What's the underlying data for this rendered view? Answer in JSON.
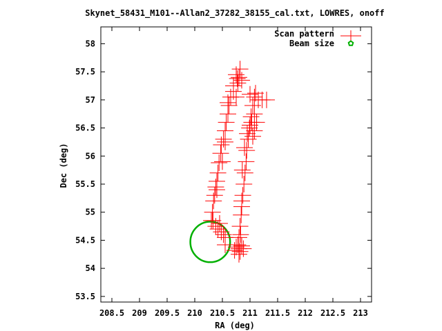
{
  "chart_data": {
    "type": "scatter",
    "title": "Skynet_58431_M101--Allan2_37282_38155_cal.txt, LOWRES, onoff",
    "xlabel": "RA (deg)",
    "ylabel": "Dec (deg)",
    "xlim": [
      208.3,
      213.2
    ],
    "ylim": [
      53.4,
      58.3
    ],
    "x_ticks": [
      "208.5",
      "209",
      "209.5",
      "210",
      "210.5",
      "211",
      "211.5",
      "212",
      "212.5",
      "213"
    ],
    "y_ticks": [
      "53.5",
      "54",
      "54.5",
      "55",
      "55.5",
      "56",
      "56.5",
      "57",
      "57.5",
      "58"
    ],
    "legend_position": "top-right",
    "colors": {
      "scan": "#ff0000",
      "beam": "#00b000"
    },
    "series": [
      {
        "name": "Scan pattern",
        "marker": "plus",
        "points": [
          [
            210.8,
            54.35
          ],
          [
            210.78,
            54.42
          ],
          [
            210.82,
            54.3
          ],
          [
            210.75,
            54.38
          ],
          [
            210.85,
            54.4
          ],
          [
            210.8,
            54.25
          ],
          [
            210.88,
            54.35
          ],
          [
            210.72,
            54.32
          ],
          [
            210.8,
            54.55
          ],
          [
            210.82,
            54.75
          ],
          [
            210.84,
            54.95
          ],
          [
            210.85,
            55.1
          ],
          [
            210.87,
            55.3
          ],
          [
            210.89,
            55.5
          ],
          [
            210.91,
            55.7
          ],
          [
            210.93,
            55.9
          ],
          [
            210.94,
            56.1
          ],
          [
            210.97,
            56.3
          ],
          [
            210.99,
            56.5
          ],
          [
            211.02,
            56.7
          ],
          [
            211.05,
            56.9
          ],
          [
            211.08,
            57.05
          ],
          [
            211.15,
            57.0
          ],
          [
            211.22,
            57.0
          ],
          [
            211.3,
            57.0
          ],
          [
            211.1,
            57.12
          ],
          [
            211.0,
            57.1
          ],
          [
            211.03,
            56.6
          ],
          [
            211.05,
            56.35
          ],
          [
            211.12,
            56.6
          ],
          [
            211.08,
            56.45
          ],
          [
            210.8,
            57.4
          ],
          [
            210.82,
            57.55
          ],
          [
            210.78,
            57.3
          ],
          [
            210.75,
            57.45
          ],
          [
            210.7,
            57.25
          ],
          [
            210.7,
            57.15
          ],
          [
            210.65,
            57.05
          ],
          [
            210.62,
            56.9
          ],
          [
            210.6,
            56.75
          ],
          [
            210.57,
            56.6
          ],
          [
            210.55,
            56.45
          ],
          [
            210.52,
            56.3
          ],
          [
            210.48,
            56.2
          ],
          [
            210.47,
            56.05
          ],
          [
            210.44,
            55.88
          ],
          [
            210.42,
            55.7
          ],
          [
            210.4,
            55.55
          ],
          [
            210.38,
            55.45
          ],
          [
            210.36,
            55.3
          ],
          [
            210.34,
            55.2
          ],
          [
            210.32,
            55.0
          ],
          [
            210.33,
            54.85
          ],
          [
            210.38,
            54.75
          ],
          [
            210.42,
            54.7
          ],
          [
            210.48,
            54.65
          ],
          [
            210.52,
            54.6
          ],
          [
            210.55,
            54.55
          ],
          [
            210.55,
            54.42
          ],
          [
            210.45,
            54.8
          ],
          [
            210.3,
            54.85
          ],
          [
            210.4,
            55.4
          ],
          [
            210.5,
            55.9
          ],
          [
            210.55,
            56.25
          ],
          [
            210.75,
            57.05
          ],
          [
            210.77,
            57.38
          ],
          [
            210.85,
            57.35
          ],
          [
            210.6,
            56.95
          ],
          [
            210.85,
            55.2
          ],
          [
            210.83,
            54.6
          ],
          [
            210.86,
            55.75
          ],
          [
            210.9,
            56.15
          ],
          [
            210.95,
            56.4
          ],
          [
            211.0,
            56.55
          ],
          [
            211.08,
            56.75
          ]
        ]
      },
      {
        "name": "Beam size",
        "marker": "pentagon",
        "shape": "circle",
        "center": [
          210.28,
          54.47
        ],
        "radius": 0.36
      }
    ]
  }
}
